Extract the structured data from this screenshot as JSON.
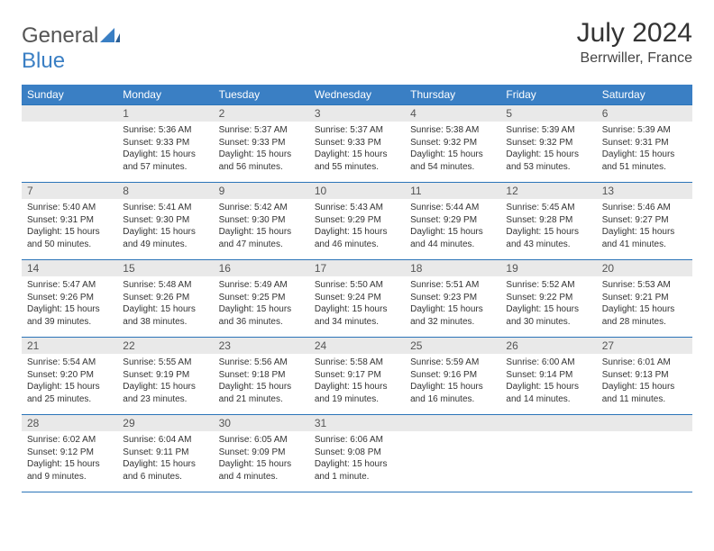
{
  "brand": {
    "general": "General",
    "blue": "Blue"
  },
  "title": "July 2024",
  "location": "Berrwiller, France",
  "colors": {
    "header_bg": "#3a7fc4",
    "header_text": "#ffffff",
    "daynum_bg": "#e9e9e9",
    "row_border": "#2b74b8",
    "text": "#333333",
    "background": "#ffffff"
  },
  "weekdays": [
    "Sunday",
    "Monday",
    "Tuesday",
    "Wednesday",
    "Thursday",
    "Friday",
    "Saturday"
  ],
  "weeks": [
    [
      null,
      {
        "n": "1",
        "sr": "Sunrise: 5:36 AM",
        "ss": "Sunset: 9:33 PM",
        "dl": "Daylight: 15 hours and 57 minutes."
      },
      {
        "n": "2",
        "sr": "Sunrise: 5:37 AM",
        "ss": "Sunset: 9:33 PM",
        "dl": "Daylight: 15 hours and 56 minutes."
      },
      {
        "n": "3",
        "sr": "Sunrise: 5:37 AM",
        "ss": "Sunset: 9:33 PM",
        "dl": "Daylight: 15 hours and 55 minutes."
      },
      {
        "n": "4",
        "sr": "Sunrise: 5:38 AM",
        "ss": "Sunset: 9:32 PM",
        "dl": "Daylight: 15 hours and 54 minutes."
      },
      {
        "n": "5",
        "sr": "Sunrise: 5:39 AM",
        "ss": "Sunset: 9:32 PM",
        "dl": "Daylight: 15 hours and 53 minutes."
      },
      {
        "n": "6",
        "sr": "Sunrise: 5:39 AM",
        "ss": "Sunset: 9:31 PM",
        "dl": "Daylight: 15 hours and 51 minutes."
      }
    ],
    [
      {
        "n": "7",
        "sr": "Sunrise: 5:40 AM",
        "ss": "Sunset: 9:31 PM",
        "dl": "Daylight: 15 hours and 50 minutes."
      },
      {
        "n": "8",
        "sr": "Sunrise: 5:41 AM",
        "ss": "Sunset: 9:30 PM",
        "dl": "Daylight: 15 hours and 49 minutes."
      },
      {
        "n": "9",
        "sr": "Sunrise: 5:42 AM",
        "ss": "Sunset: 9:30 PM",
        "dl": "Daylight: 15 hours and 47 minutes."
      },
      {
        "n": "10",
        "sr": "Sunrise: 5:43 AM",
        "ss": "Sunset: 9:29 PM",
        "dl": "Daylight: 15 hours and 46 minutes."
      },
      {
        "n": "11",
        "sr": "Sunrise: 5:44 AM",
        "ss": "Sunset: 9:29 PM",
        "dl": "Daylight: 15 hours and 44 minutes."
      },
      {
        "n": "12",
        "sr": "Sunrise: 5:45 AM",
        "ss": "Sunset: 9:28 PM",
        "dl": "Daylight: 15 hours and 43 minutes."
      },
      {
        "n": "13",
        "sr": "Sunrise: 5:46 AM",
        "ss": "Sunset: 9:27 PM",
        "dl": "Daylight: 15 hours and 41 minutes."
      }
    ],
    [
      {
        "n": "14",
        "sr": "Sunrise: 5:47 AM",
        "ss": "Sunset: 9:26 PM",
        "dl": "Daylight: 15 hours and 39 minutes."
      },
      {
        "n": "15",
        "sr": "Sunrise: 5:48 AM",
        "ss": "Sunset: 9:26 PM",
        "dl": "Daylight: 15 hours and 38 minutes."
      },
      {
        "n": "16",
        "sr": "Sunrise: 5:49 AM",
        "ss": "Sunset: 9:25 PM",
        "dl": "Daylight: 15 hours and 36 minutes."
      },
      {
        "n": "17",
        "sr": "Sunrise: 5:50 AM",
        "ss": "Sunset: 9:24 PM",
        "dl": "Daylight: 15 hours and 34 minutes."
      },
      {
        "n": "18",
        "sr": "Sunrise: 5:51 AM",
        "ss": "Sunset: 9:23 PM",
        "dl": "Daylight: 15 hours and 32 minutes."
      },
      {
        "n": "19",
        "sr": "Sunrise: 5:52 AM",
        "ss": "Sunset: 9:22 PM",
        "dl": "Daylight: 15 hours and 30 minutes."
      },
      {
        "n": "20",
        "sr": "Sunrise: 5:53 AM",
        "ss": "Sunset: 9:21 PM",
        "dl": "Daylight: 15 hours and 28 minutes."
      }
    ],
    [
      {
        "n": "21",
        "sr": "Sunrise: 5:54 AM",
        "ss": "Sunset: 9:20 PM",
        "dl": "Daylight: 15 hours and 25 minutes."
      },
      {
        "n": "22",
        "sr": "Sunrise: 5:55 AM",
        "ss": "Sunset: 9:19 PM",
        "dl": "Daylight: 15 hours and 23 minutes."
      },
      {
        "n": "23",
        "sr": "Sunrise: 5:56 AM",
        "ss": "Sunset: 9:18 PM",
        "dl": "Daylight: 15 hours and 21 minutes."
      },
      {
        "n": "24",
        "sr": "Sunrise: 5:58 AM",
        "ss": "Sunset: 9:17 PM",
        "dl": "Daylight: 15 hours and 19 minutes."
      },
      {
        "n": "25",
        "sr": "Sunrise: 5:59 AM",
        "ss": "Sunset: 9:16 PM",
        "dl": "Daylight: 15 hours and 16 minutes."
      },
      {
        "n": "26",
        "sr": "Sunrise: 6:00 AM",
        "ss": "Sunset: 9:14 PM",
        "dl": "Daylight: 15 hours and 14 minutes."
      },
      {
        "n": "27",
        "sr": "Sunrise: 6:01 AM",
        "ss": "Sunset: 9:13 PM",
        "dl": "Daylight: 15 hours and 11 minutes."
      }
    ],
    [
      {
        "n": "28",
        "sr": "Sunrise: 6:02 AM",
        "ss": "Sunset: 9:12 PM",
        "dl": "Daylight: 15 hours and 9 minutes."
      },
      {
        "n": "29",
        "sr": "Sunrise: 6:04 AM",
        "ss": "Sunset: 9:11 PM",
        "dl": "Daylight: 15 hours and 6 minutes."
      },
      {
        "n": "30",
        "sr": "Sunrise: 6:05 AM",
        "ss": "Sunset: 9:09 PM",
        "dl": "Daylight: 15 hours and 4 minutes."
      },
      {
        "n": "31",
        "sr": "Sunrise: 6:06 AM",
        "ss": "Sunset: 9:08 PM",
        "dl": "Daylight: 15 hours and 1 minute."
      },
      null,
      null,
      null
    ]
  ]
}
